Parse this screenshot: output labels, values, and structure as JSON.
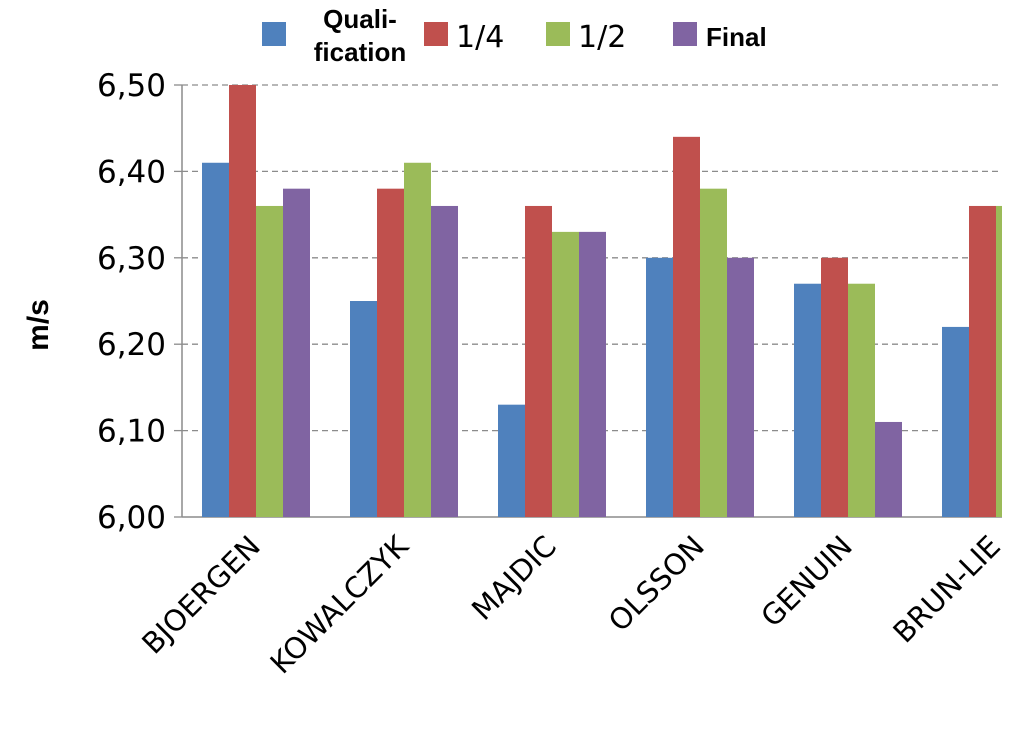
{
  "chart_data": {
    "type": "bar",
    "ylabel": "m/s",
    "ylim": [
      6.0,
      6.5
    ],
    "yticks": [
      "6,00",
      "6,10",
      "6,20",
      "6,30",
      "6,40",
      "6,50"
    ],
    "grid": true,
    "legend_position": "top",
    "categories": [
      "BJOERGEN",
      "KOWALCZYK",
      "MAJDIC",
      "OLSSON",
      "GENUIN",
      "BRUN-LIE"
    ],
    "series": [
      {
        "name": "Quali-\nfication",
        "name_lines": [
          "Quali-",
          "fication"
        ],
        "color": "#4F81BD",
        "values": [
          6.41,
          6.25,
          6.13,
          6.3,
          6.27,
          6.22
        ]
      },
      {
        "name": "1/4",
        "name_lines": [
          "1/4"
        ],
        "color": "#C0504D",
        "values": [
          6.5,
          6.38,
          6.36,
          6.44,
          6.3,
          6.36
        ]
      },
      {
        "name": "1/2",
        "name_lines": [
          "1/2"
        ],
        "color": "#9BBB59",
        "values": [
          6.36,
          6.41,
          6.33,
          6.38,
          6.27,
          6.36
        ]
      },
      {
        "name": "Final",
        "name_lines": [
          "Final"
        ],
        "color": "#8064A2",
        "values": [
          6.38,
          6.36,
          6.33,
          6.3,
          6.11,
          null
        ]
      }
    ]
  }
}
